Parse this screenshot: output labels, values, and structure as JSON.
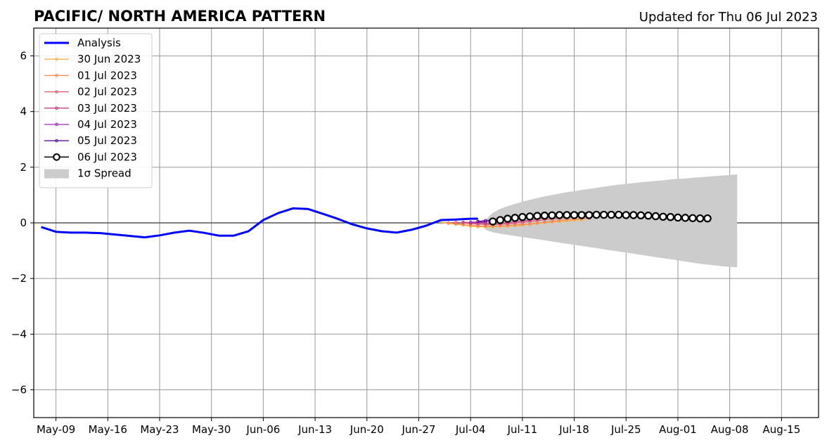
{
  "chart_data": {
    "type": "line",
    "title": "PACIFIC/ NORTH AMERICA PATTERN",
    "updated": "Updated for Thu 06 Jul 2023",
    "xlabel": "",
    "ylabel": "",
    "x_range": [
      "2023-05-06",
      "2023-08-20"
    ],
    "ylim": [
      -7,
      7
    ],
    "x_ticks": [
      {
        "date": "2023-05-09",
        "label": "May-09"
      },
      {
        "date": "2023-05-16",
        "label": "May-16"
      },
      {
        "date": "2023-05-23",
        "label": "May-23"
      },
      {
        "date": "2023-05-30",
        "label": "May-30"
      },
      {
        "date": "2023-06-06",
        "label": "Jun-06"
      },
      {
        "date": "2023-06-13",
        "label": "Jun-13"
      },
      {
        "date": "2023-06-20",
        "label": "Jun-20"
      },
      {
        "date": "2023-06-27",
        "label": "Jun-27"
      },
      {
        "date": "2023-07-04",
        "label": "Jul-04"
      },
      {
        "date": "2023-07-11",
        "label": "Jul-11"
      },
      {
        "date": "2023-07-18",
        "label": "Jul-18"
      },
      {
        "date": "2023-07-25",
        "label": "Jul-25"
      },
      {
        "date": "2023-08-01",
        "label": "Aug-01"
      },
      {
        "date": "2023-08-08",
        "label": "Aug-08"
      },
      {
        "date": "2023-08-15",
        "label": "Aug-15"
      }
    ],
    "y_ticks": [
      {
        "value": 6,
        "label": "6"
      },
      {
        "value": 4,
        "label": "4"
      },
      {
        "value": 2,
        "label": "2"
      },
      {
        "value": 0,
        "label": "0"
      },
      {
        "value": -2,
        "label": "−2"
      },
      {
        "value": -4,
        "label": "−4"
      },
      {
        "value": -6,
        "label": "−6"
      }
    ],
    "grid": true,
    "legend_position": "top-left",
    "analysis": {
      "name": "Analysis",
      "color": "#0000ff",
      "x": [
        "2023-05-07",
        "2023-05-09",
        "2023-05-11",
        "2023-05-13",
        "2023-05-15",
        "2023-05-17",
        "2023-05-19",
        "2023-05-21",
        "2023-05-23",
        "2023-05-25",
        "2023-05-27",
        "2023-05-29",
        "2023-05-31",
        "2023-06-02",
        "2023-06-04",
        "2023-06-06",
        "2023-06-08",
        "2023-06-10",
        "2023-06-12",
        "2023-06-14",
        "2023-06-16",
        "2023-06-18",
        "2023-06-20",
        "2023-06-22",
        "2023-06-24",
        "2023-06-26",
        "2023-06-28",
        "2023-06-30",
        "2023-07-02",
        "2023-07-04",
        "2023-07-05"
      ],
      "values": [
        -0.15,
        -0.32,
        -0.35,
        -0.35,
        -0.37,
        -0.42,
        -0.47,
        -0.52,
        -0.45,
        -0.35,
        -0.28,
        -0.36,
        -0.46,
        -0.46,
        -0.3,
        0.1,
        0.35,
        0.52,
        0.5,
        0.33,
        0.15,
        -0.05,
        -0.2,
        -0.3,
        -0.35,
        -0.25,
        -0.1,
        0.1,
        0.12,
        0.15,
        0.15
      ]
    },
    "forecasts": [
      {
        "name": "30 Jun 2023",
        "color": "#ffb347",
        "start": "2023-06-30",
        "values": [
          0.02,
          -0.02,
          -0.05,
          -0.08,
          -0.12,
          -0.14,
          -0.15,
          -0.14,
          -0.13,
          -0.12,
          -0.1,
          -0.08,
          -0.05,
          -0.02,
          0.01,
          0.03,
          0.05,
          0.07,
          0.09,
          0.1
        ]
      },
      {
        "name": "01 Jul 2023",
        "color": "#f58c52",
        "start": "2023-07-01",
        "values": [
          0.0,
          -0.03,
          -0.06,
          -0.09,
          -0.11,
          -0.12,
          -0.12,
          -0.11,
          -0.1,
          -0.08,
          -0.06,
          -0.04,
          -0.01,
          0.02,
          0.05,
          0.08,
          0.11,
          0.13,
          0.15,
          0.16
        ]
      },
      {
        "name": "02 Jul 2023",
        "color": "#e0596e",
        "start": "2023-07-02",
        "values": [
          0.02,
          0.0,
          -0.03,
          -0.05,
          -0.06,
          -0.06,
          -0.05,
          -0.03,
          -0.01,
          0.02,
          0.05,
          0.08,
          0.11,
          0.14,
          0.17,
          0.19,
          0.21,
          0.22,
          0.23,
          0.23
        ]
      },
      {
        "name": "03 Jul 2023",
        "color": "#c23c86",
        "start": "2023-07-03",
        "values": [
          0.02,
          0.01,
          -0.01,
          -0.02,
          -0.02,
          -0.01,
          0.01,
          0.04,
          0.07,
          0.1,
          0.14,
          0.18,
          0.22,
          0.25,
          0.28,
          0.3,
          0.32,
          0.33,
          0.33,
          0.33
        ]
      },
      {
        "name": "04 Jul 2023",
        "color": "#9b26b0",
        "start": "2023-07-04",
        "values": [
          0.02,
          0.03,
          0.04,
          0.06,
          0.08,
          0.11,
          0.14,
          0.17,
          0.2,
          0.23,
          0.26,
          0.29,
          0.31,
          0.33,
          0.35,
          0.36,
          0.36,
          0.36,
          0.35,
          0.34
        ]
      },
      {
        "name": "05 Jul 2023",
        "color": "#5b0f9e",
        "start": "2023-07-05",
        "values": [
          0.05,
          0.08,
          0.11,
          0.14,
          0.17,
          0.2,
          0.23,
          0.26,
          0.28,
          0.3,
          0.32,
          0.33,
          0.34,
          0.35,
          0.36,
          0.36,
          0.35,
          0.34,
          0.32,
          0.3,
          0.28
        ]
      }
    ],
    "current_forecast": {
      "name": "06 Jul 2023",
      "color": "#000000",
      "marker_fill": "#ffffff",
      "start": "2023-07-07",
      "values": [
        0.05,
        0.1,
        0.15,
        0.18,
        0.21,
        0.23,
        0.25,
        0.26,
        0.27,
        0.28,
        0.28,
        0.28,
        0.28,
        0.28,
        0.29,
        0.29,
        0.29,
        0.29,
        0.28,
        0.28,
        0.27,
        0.26,
        0.24,
        0.22,
        0.21,
        0.19,
        0.18,
        0.17,
        0.16,
        0.16
      ]
    },
    "spread": {
      "name": "1σ Spread",
      "color": "#cccccc",
      "start": "2023-07-06",
      "upper": [
        0.1,
        0.36,
        0.5,
        0.6,
        0.68,
        0.76,
        0.83,
        0.89,
        0.95,
        1.0,
        1.05,
        1.1,
        1.14,
        1.18,
        1.22,
        1.26,
        1.3,
        1.34,
        1.37,
        1.4,
        1.43,
        1.46,
        1.48,
        1.51,
        1.53,
        1.56,
        1.58,
        1.6,
        1.62,
        1.64,
        1.66,
        1.68,
        1.7,
        1.72,
        1.74
      ],
      "lower": [
        -0.25,
        -0.34,
        -0.39,
        -0.43,
        -0.47,
        -0.51,
        -0.55,
        -0.59,
        -0.63,
        -0.67,
        -0.71,
        -0.75,
        -0.79,
        -0.83,
        -0.87,
        -0.91,
        -0.95,
        -0.99,
        -1.03,
        -1.07,
        -1.11,
        -1.15,
        -1.19,
        -1.23,
        -1.27,
        -1.31,
        -1.35,
        -1.39,
        -1.43,
        -1.47,
        -1.5,
        -1.53,
        -1.56,
        -1.58,
        -1.6
      ]
    }
  }
}
